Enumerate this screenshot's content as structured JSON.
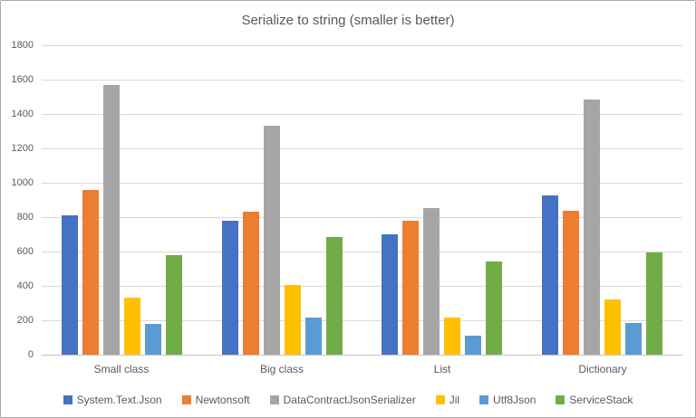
{
  "chart_data": {
    "type": "bar",
    "title": "Serialize to string (smaller is better)",
    "categories": [
      "Small class",
      "Big class",
      "List",
      "Dictionary"
    ],
    "series": [
      {
        "name": "System.Text.Json",
        "color": "#4472C4",
        "values": [
          810,
          780,
          700,
          925
        ]
      },
      {
        "name": "Newtonsoft",
        "color": "#ED7D31",
        "values": [
          960,
          830,
          780,
          835
        ]
      },
      {
        "name": "DataContractJsonSerializer",
        "color": "#A5A5A5",
        "values": [
          1570,
          1330,
          855,
          1485
        ]
      },
      {
        "name": "Jil",
        "color": "#FFC000",
        "values": [
          330,
          405,
          215,
          320
        ]
      },
      {
        "name": "Utf8Json",
        "color": "#5B9BD5",
        "values": [
          180,
          215,
          110,
          185
        ]
      },
      {
        "name": "ServiceStack",
        "color": "#70AD47",
        "values": [
          580,
          685,
          540,
          595
        ]
      }
    ],
    "ylim": [
      0,
      1800
    ],
    "yticks": [
      0,
      200,
      400,
      600,
      800,
      1000,
      1200,
      1400,
      1600,
      1800
    ],
    "grid": true,
    "legend_position": "bottom",
    "colors": {
      "text": "#595959",
      "gridline": "#d9d9d9",
      "axis_line": "#c3c3c3",
      "frame_border": "#ababab"
    }
  }
}
